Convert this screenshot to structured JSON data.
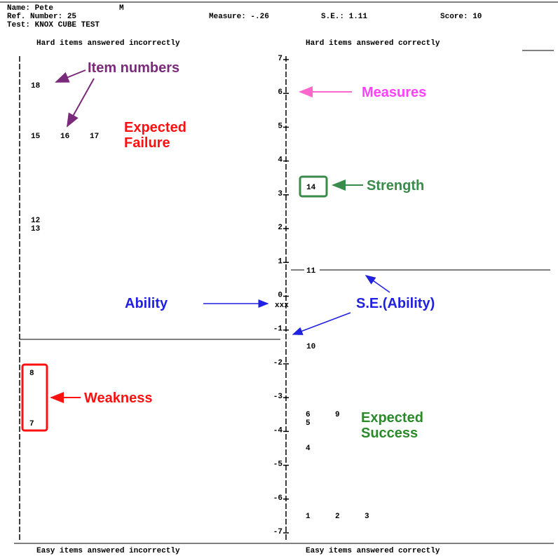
{
  "header": {
    "name": "Name: Pete",
    "gender": "M",
    "ref": "Ref. Number: 25",
    "measure": "Measure: -.26",
    "se": "S.E.: 1.11",
    "score": "Score: 10",
    "test": "Test: KNOX CUBE TEST"
  },
  "columns": {
    "top_left": "Hard items answered incorrectly",
    "top_right": "Hard items answered correctly",
    "bottom_left": "Easy items answered incorrectly",
    "bottom_right": "Easy items answered correctly"
  },
  "axis": {
    "ticks": [
      7,
      6,
      5,
      4,
      3,
      2,
      1,
      0,
      -1,
      -2,
      -3,
      -4,
      -5,
      -6,
      -7
    ],
    "ability": "xxx"
  },
  "items": {
    "left": [
      "18",
      "15",
      "16",
      "17",
      "12",
      "13",
      "8",
      "7"
    ],
    "right": [
      "14",
      "11",
      "10",
      "6",
      "9",
      "5",
      "4",
      "1",
      "2",
      "3"
    ]
  },
  "annotations": {
    "item_numbers": "Item numbers",
    "measures": "Measures",
    "expected_failure_1": "Expected",
    "expected_failure_2": "Failure",
    "strength": "Strength",
    "ability": "Ability",
    "se_ability": "S.E.(Ability)",
    "weakness": "Weakness",
    "expected_success_1": "Expected",
    "expected_success_2": "Success"
  }
}
